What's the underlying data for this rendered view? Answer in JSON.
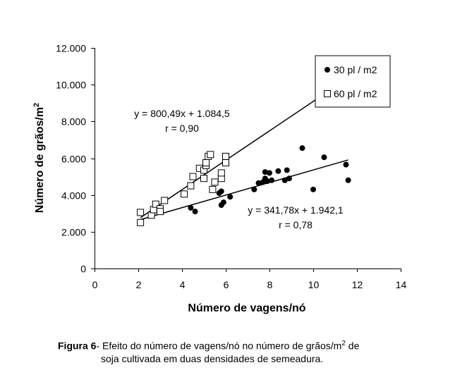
{
  "chart_data": {
    "type": "scatter",
    "xlabel": "Número de vagens/nó",
    "ylabel": "Número de grãos/m",
    "ylabel_superscript": "2",
    "xlim": [
      0,
      14
    ],
    "ylim": [
      0,
      12000
    ],
    "x_ticks": [
      0,
      2,
      4,
      6,
      8,
      10,
      12,
      14
    ],
    "x_tick_labels": [
      "0",
      "2",
      "4",
      "6",
      "8",
      "10",
      "12",
      "14"
    ],
    "y_ticks": [
      0,
      2000,
      4000,
      6000,
      8000,
      10000,
      12000
    ],
    "y_tick_labels": [
      "0",
      "2.000",
      "4.000",
      "6.000",
      "8.000",
      "10.000",
      "12.000"
    ],
    "grid": false,
    "legend_position": "top-right",
    "series": [
      {
        "name": "30 pl / m2",
        "marker": "filled-circle",
        "color": "#000000",
        "points": [
          [
            4.4,
            3300
          ],
          [
            4.6,
            3100
          ],
          [
            5.7,
            4100
          ],
          [
            5.8,
            4200
          ],
          [
            5.8,
            3450
          ],
          [
            5.9,
            3600
          ],
          [
            6.2,
            3900
          ],
          [
            7.3,
            4300
          ],
          [
            7.5,
            4650
          ],
          [
            7.7,
            4700
          ],
          [
            7.8,
            4900
          ],
          [
            7.8,
            5250
          ],
          [
            7.9,
            4750
          ],
          [
            8.0,
            5200
          ],
          [
            8.1,
            4800
          ],
          [
            8.4,
            5300
          ],
          [
            8.7,
            4800
          ],
          [
            8.8,
            5350
          ],
          [
            8.9,
            4900
          ],
          [
            9.5,
            6550
          ],
          [
            10.0,
            4300
          ],
          [
            10.5,
            6050
          ],
          [
            11.5,
            5650
          ],
          [
            11.6,
            4800
          ]
        ],
        "trendline": {
          "equation": "y = 341,78x + 1.942,1",
          "r": "r = 0,78",
          "slope": 341.78,
          "intercept": 1942.1,
          "x_range": [
            2.1,
            11.6
          ]
        }
      },
      {
        "name": "60 pl / m2",
        "marker": "open-square",
        "color": "#000000",
        "points": [
          [
            2.1,
            3050
          ],
          [
            2.1,
            2500
          ],
          [
            2.6,
            2900
          ],
          [
            2.7,
            3200
          ],
          [
            2.8,
            3500
          ],
          [
            3.0,
            3250
          ],
          [
            3.0,
            3100
          ],
          [
            3.2,
            3700
          ],
          [
            4.1,
            4050
          ],
          [
            4.4,
            4500
          ],
          [
            4.5,
            5000
          ],
          [
            4.8,
            5450
          ],
          [
            5.0,
            4900
          ],
          [
            5.0,
            5350
          ],
          [
            5.1,
            5600
          ],
          [
            5.1,
            5750
          ],
          [
            5.2,
            6100
          ],
          [
            5.3,
            6200
          ],
          [
            5.4,
            4300
          ],
          [
            5.5,
            4700
          ],
          [
            5.8,
            4900
          ],
          [
            5.8,
            5200
          ],
          [
            6.0,
            5750
          ],
          [
            6.0,
            6100
          ]
        ],
        "trendline": {
          "equation": "y = 800,49x + 1.084,5",
          "r": "r = 0,90",
          "slope": 800.49,
          "intercept": 1084.5,
          "x_range": [
            2.1,
            10.5
          ]
        }
      }
    ]
  },
  "caption": {
    "label": "Figura 6",
    "text_part1": "- Efeito do número de vagens/nó no número de grãos/m",
    "superscript": "2",
    "text_part2": " de",
    "line2": "soja cultivada em duas densidades de semeadura."
  }
}
